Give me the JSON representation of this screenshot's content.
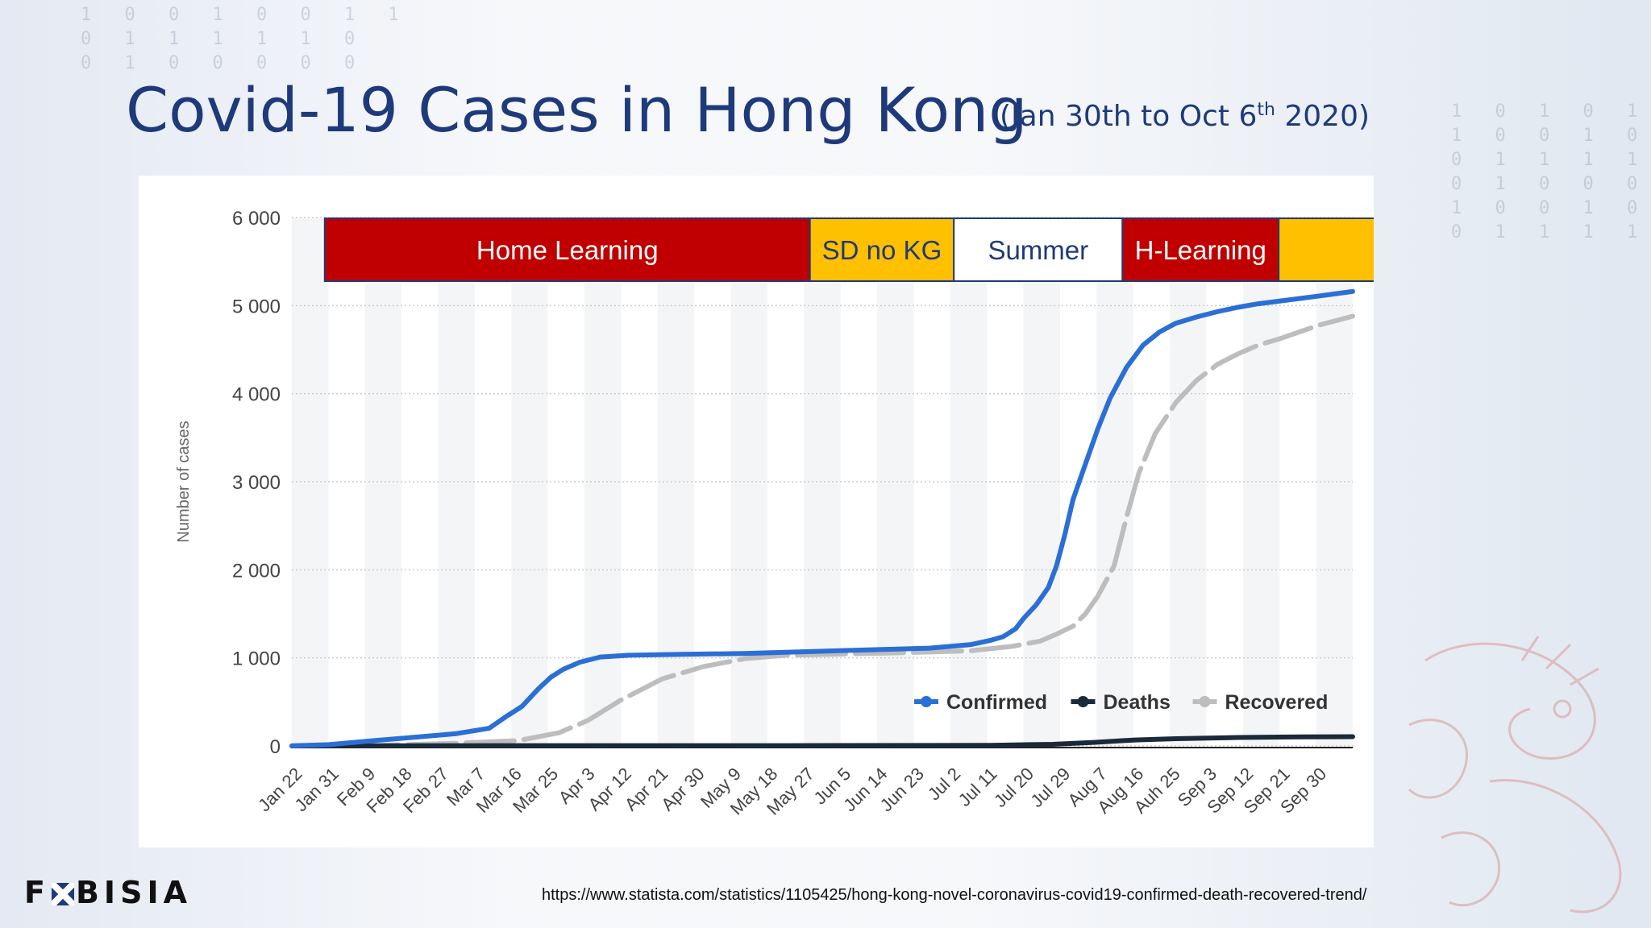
{
  "slide": {
    "title": "Covid-19 Cases in Hong Kong",
    "subtitle_main": "(Jan 30th to Oct 6",
    "subtitle_sup": "th",
    "subtitle_end": " 2020)",
    "logo_left": "F",
    "logo_right": "BISIA",
    "source_url": "https://www.statista.com/statistics/1105425/hong-kong-novel-coronavirus-covid19-confirmed-death-recovered-trend/"
  },
  "colors": {
    "title": "#1f3a7a",
    "home_learning": "#c00000",
    "sd_no_kg": "#ffc000",
    "summer": "#ffffff",
    "confirmed": "#2b6fd6",
    "deaths": "#1b2a3a",
    "recovered": "#bdbdbd",
    "grid": "#cccccc"
  },
  "chart_data": {
    "type": "line",
    "xlabel": "",
    "ylabel": "Number of cases",
    "ylim": [
      0,
      6000
    ],
    "yticks": [
      "0",
      "1 000",
      "2 000",
      "3 000",
      "4 000",
      "5 000",
      "6 000"
    ],
    "x_tick_labels": [
      "Jan 22",
      "Jan 31",
      "Feb 9",
      "Feb 18",
      "Feb 27",
      "Mar 7",
      "Mar 16",
      "Mar 25",
      "Apr 3",
      "Apr 12",
      "Apr 21",
      "Apr 30",
      "May 9",
      "May 18",
      "May 27",
      "Jun 5",
      "Jun 14",
      "Jun 23",
      "Jul 2",
      "Jul 11",
      "Jul 20",
      "Jul 29",
      "Aug 7",
      "Aug 16",
      "Auh 25",
      "Sep 3",
      "Sep 12",
      "Sep 21",
      "Sep 30"
    ],
    "x_range_days": [
      0,
      258
    ],
    "phases": [
      {
        "label": "Home Learning",
        "start_day": 8,
        "end_day": 126,
        "color": "#c00000",
        "text_color": "#ffffff"
      },
      {
        "label": "SD no KG",
        "start_day": 126,
        "end_day": 161,
        "color": "#ffc000",
        "text_color": "#1f3a7a"
      },
      {
        "label": "Summer",
        "start_day": 161,
        "end_day": 202,
        "color": "#ffffff",
        "text_color": "#1f3a7a"
      },
      {
        "label": "H-Learning",
        "start_day": 202,
        "end_day": 240,
        "color": "#c00000",
        "text_color": "#ffffff"
      },
      {
        "label": "",
        "start_day": 240,
        "end_day": 268,
        "color": "#ffc000",
        "text_color": "#1f3a7a"
      }
    ],
    "legend": "bottom-right",
    "series": [
      {
        "name": "Confirmed",
        "color": "#2b6fd6",
        "days": [
          0,
          9,
          20,
          30,
          40,
          48,
          52,
          56,
          60,
          63,
          66,
          70,
          75,
          82,
          95,
          110,
          125,
          140,
          155,
          165,
          170,
          173,
          176,
          178,
          181,
          184,
          186,
          188,
          190,
          193,
          196,
          199,
          203,
          207,
          211,
          215,
          220,
          225,
          230,
          235,
          240,
          245,
          250,
          258
        ],
        "values": [
          2,
          15,
          60,
          100,
          140,
          200,
          330,
          450,
          650,
          780,
          870,
          950,
          1010,
          1030,
          1040,
          1050,
          1070,
          1090,
          1110,
          1150,
          1200,
          1240,
          1330,
          1450,
          1600,
          1800,
          2050,
          2400,
          2800,
          3200,
          3600,
          3950,
          4300,
          4550,
          4700,
          4800,
          4870,
          4930,
          4980,
          5020,
          5050,
          5080,
          5110,
          5160
        ]
      },
      {
        "name": "Deaths",
        "color": "#1b2a3a",
        "days": [
          0,
          60,
          120,
          170,
          185,
          195,
          205,
          215,
          230,
          245,
          258
        ],
        "values": [
          0,
          4,
          4,
          7,
          18,
          40,
          68,
          82,
          96,
          102,
          105
        ]
      },
      {
        "name": "Recovered",
        "color": "#bdbdbd",
        "days": [
          0,
          20,
          40,
          55,
          65,
          72,
          80,
          90,
          100,
          110,
          120,
          135,
          150,
          165,
          175,
          182,
          186,
          190,
          193,
          196,
          200,
          203,
          206,
          210,
          215,
          220,
          225,
          230,
          235,
          240,
          245,
          250,
          258
        ],
        "values": [
          0,
          5,
          30,
          60,
          150,
          290,
          520,
          760,
          900,
          990,
          1030,
          1045,
          1060,
          1080,
          1130,
          1190,
          1270,
          1360,
          1500,
          1700,
          2050,
          2600,
          3100,
          3550,
          3900,
          4150,
          4330,
          4450,
          4550,
          4620,
          4700,
          4780,
          4880
        ]
      }
    ]
  }
}
